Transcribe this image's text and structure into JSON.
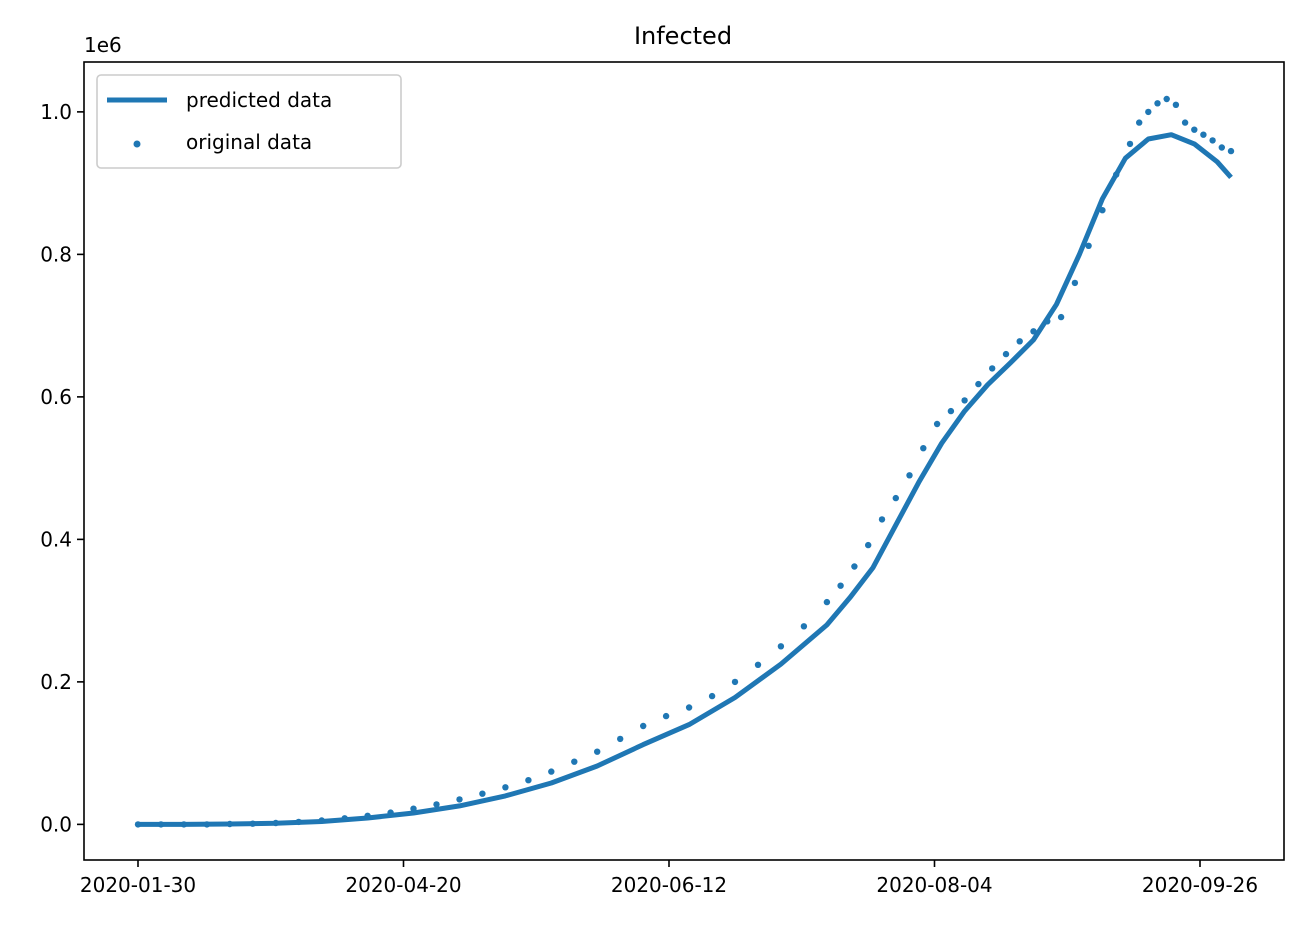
{
  "chart_data": {
    "type": "line",
    "title": "Infected",
    "xlabel": "",
    "ylabel": "",
    "y_offset_label": "1e6",
    "x_tick_labels": [
      "2020-01-30",
      "2020-04-20",
      "2020-06-12",
      "2020-08-04",
      "2020-09-26"
    ],
    "y_tick_labels": [
      "0.0",
      "0.2",
      "0.4",
      "0.6",
      "0.8",
      "1.0"
    ],
    "y_ticks": [
      0,
      200000,
      400000,
      600000,
      800000,
      1000000
    ],
    "ylim": [
      -50000,
      1070000
    ],
    "grid": false,
    "legend_position": "upper-left",
    "color": "#1f77b4",
    "series": [
      {
        "name": "predicted data",
        "kind": "line",
        "points": [
          [
            0,
            0
          ],
          [
            10,
            0
          ],
          [
            20,
            500
          ],
          [
            30,
            1500
          ],
          [
            40,
            4000
          ],
          [
            50,
            9000
          ],
          [
            60,
            16000
          ],
          [
            70,
            26000
          ],
          [
            80,
            40000
          ],
          [
            90,
            58000
          ],
          [
            100,
            82000
          ],
          [
            110,
            112000
          ],
          [
            120,
            140000
          ],
          [
            130,
            178000
          ],
          [
            140,
            225000
          ],
          [
            150,
            280000
          ],
          [
            155,
            318000
          ],
          [
            160,
            360000
          ],
          [
            165,
            420000
          ],
          [
            170,
            480000
          ],
          [
            175,
            535000
          ],
          [
            180,
            580000
          ],
          [
            185,
            617000
          ],
          [
            190,
            648000
          ],
          [
            195,
            680000
          ],
          [
            200,
            730000
          ],
          [
            205,
            800000
          ],
          [
            210,
            878000
          ],
          [
            215,
            935000
          ],
          [
            220,
            962000
          ],
          [
            225,
            968000
          ],
          [
            230,
            955000
          ],
          [
            235,
            930000
          ],
          [
            238,
            908000
          ]
        ]
      },
      {
        "name": "original data",
        "kind": "scatter",
        "points": [
          [
            0,
            0
          ],
          [
            5,
            0
          ],
          [
            10,
            0
          ],
          [
            15,
            0
          ],
          [
            20,
            500
          ],
          [
            25,
            1000
          ],
          [
            30,
            2000
          ],
          [
            35,
            3500
          ],
          [
            40,
            5500
          ],
          [
            45,
            8500
          ],
          [
            50,
            12000
          ],
          [
            55,
            16500
          ],
          [
            60,
            22000
          ],
          [
            65,
            28000
          ],
          [
            70,
            35000
          ],
          [
            75,
            43000
          ],
          [
            80,
            52000
          ],
          [
            85,
            62000
          ],
          [
            90,
            74000
          ],
          [
            95,
            88000
          ],
          [
            100,
            102000
          ],
          [
            105,
            120000
          ],
          [
            110,
            138000
          ],
          [
            115,
            152000
          ],
          [
            120,
            164000
          ],
          [
            125,
            180000
          ],
          [
            130,
            200000
          ],
          [
            135,
            224000
          ],
          [
            140,
            250000
          ],
          [
            145,
            278000
          ],
          [
            150,
            312000
          ],
          [
            153,
            335000
          ],
          [
            156,
            362000
          ],
          [
            159,
            392000
          ],
          [
            162,
            428000
          ],
          [
            165,
            458000
          ],
          [
            168,
            490000
          ],
          [
            171,
            528000
          ],
          [
            174,
            562000
          ],
          [
            177,
            580000
          ],
          [
            180,
            595000
          ],
          [
            183,
            618000
          ],
          [
            186,
            640000
          ],
          [
            189,
            660000
          ],
          [
            192,
            678000
          ],
          [
            195,
            692000
          ],
          [
            198,
            706000
          ],
          [
            201,
            712000
          ],
          [
            204,
            760000
          ],
          [
            207,
            812000
          ],
          [
            210,
            862000
          ],
          [
            213,
            912000
          ],
          [
            216,
            955000
          ],
          [
            218,
            985000
          ],
          [
            220,
            1000000
          ],
          [
            222,
            1012000
          ],
          [
            224,
            1018000
          ],
          [
            226,
            1010000
          ],
          [
            228,
            985000
          ],
          [
            230,
            975000
          ],
          [
            232,
            968000
          ],
          [
            234,
            960000
          ],
          [
            236,
            950000
          ],
          [
            238,
            945000
          ]
        ]
      }
    ]
  }
}
